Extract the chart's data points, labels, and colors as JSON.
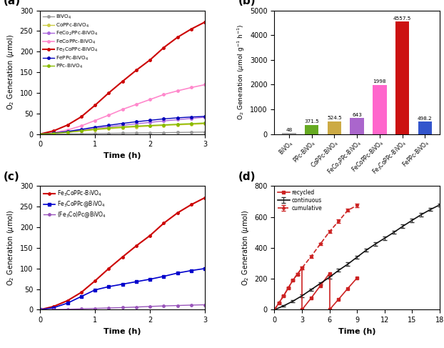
{
  "panel_a": {
    "title": "(a)",
    "xlabel": "Time (h)",
    "ylabel": "O$_2$ Generation ($\\mu$mol)",
    "xlim": [
      0,
      3
    ],
    "ylim": [
      0,
      300
    ],
    "yticks": [
      0,
      50,
      100,
      150,
      200,
      250,
      300
    ],
    "xticks": [
      0,
      1,
      2,
      3
    ],
    "series": [
      {
        "label": "BiVO$_4$",
        "color": "#999999",
        "lw": 1.0,
        "x": [
          0,
          0.25,
          0.5,
          0.75,
          1.0,
          1.25,
          1.5,
          1.75,
          2.0,
          2.25,
          2.5,
          2.75,
          3.0
        ],
        "y": [
          0,
          0.3,
          0.7,
          1.1,
          1.5,
          1.9,
          2.3,
          2.7,
          3.1,
          3.5,
          4.0,
          4.5,
          5.0
        ]
      },
      {
        "label": "CoPPc-BiVO$_4$",
        "color": "#cccc44",
        "lw": 1.0,
        "x": [
          0,
          0.25,
          0.5,
          0.75,
          1.0,
          1.25,
          1.5,
          1.75,
          2.0,
          2.25,
          2.5,
          2.75,
          3.0
        ],
        "y": [
          0,
          2.0,
          4.5,
          7.5,
          10.5,
          13.0,
          15.5,
          17.5,
          19.5,
          21.0,
          22.5,
          23.5,
          25.0
        ]
      },
      {
        "label": "FeCo$_2$PPc-BiVO$_4$",
        "color": "#aa66dd",
        "lw": 1.0,
        "x": [
          0,
          0.25,
          0.5,
          0.75,
          1.0,
          1.25,
          1.5,
          1.75,
          2.0,
          2.25,
          2.5,
          2.75,
          3.0
        ],
        "y": [
          0,
          2.5,
          6.0,
          10.0,
          14.5,
          18.0,
          21.5,
          25.0,
          28.5,
          32.0,
          35.0,
          38.0,
          41.0
        ]
      },
      {
        "label": "FeCoPPc-BiVO$_4$",
        "color": "#ff88cc",
        "lw": 1.2,
        "x": [
          0,
          0.25,
          0.5,
          0.75,
          1.0,
          1.25,
          1.5,
          1.75,
          2.0,
          2.25,
          2.5,
          2.75,
          3.0
        ],
        "y": [
          0,
          4.0,
          10.0,
          20.0,
          33.0,
          46.0,
          60.0,
          72.0,
          84.0,
          96.0,
          105.0,
          113.0,
          120.0
        ]
      },
      {
        "label": "Fe$_3$CoPPc-BiVO$_4$",
        "color": "#cc0000",
        "lw": 1.5,
        "x": [
          0,
          0.25,
          0.5,
          0.75,
          1.0,
          1.25,
          1.5,
          1.75,
          2.0,
          2.25,
          2.5,
          2.75,
          3.0
        ],
        "y": [
          0,
          8.0,
          22.0,
          42.0,
          70.0,
          100.0,
          128.0,
          155.0,
          180.0,
          210.0,
          235.0,
          255.0,
          272.0
        ]
      },
      {
        "label": "FePPc-BiVO$_4$",
        "color": "#0000bb",
        "lw": 1.0,
        "x": [
          0,
          0.25,
          0.5,
          0.75,
          1.0,
          1.25,
          1.5,
          1.75,
          2.0,
          2.25,
          2.5,
          2.75,
          3.0
        ],
        "y": [
          0,
          2.5,
          6.5,
          11.5,
          17.0,
          21.5,
          26.0,
          30.0,
          33.5,
          37.0,
          39.5,
          41.5,
          43.0
        ]
      },
      {
        "label": "PPc-BiVO$_4$",
        "color": "#88bb00",
        "lw": 1.0,
        "x": [
          0,
          0.25,
          0.5,
          0.75,
          1.0,
          1.25,
          1.5,
          1.75,
          2.0,
          2.25,
          2.5,
          2.75,
          3.0
        ],
        "y": [
          0,
          2.0,
          4.5,
          8.0,
          12.0,
          15.0,
          17.5,
          19.5,
          21.0,
          22.5,
          24.0,
          25.5,
          27.0
        ]
      }
    ]
  },
  "panel_b": {
    "title": "(b)",
    "ylabel": "O$_2$ Generation ($\\mu$mol g$^{-1}$ h$^{-1}$)",
    "ylim": [
      0,
      5000
    ],
    "yticks": [
      0,
      1000,
      2000,
      3000,
      4000,
      5000
    ],
    "categories": [
      "BiVO$_4$",
      "PPc-BiVO$_4$",
      "CoPPc-BiVO$_4$",
      "FeCo$_2$PPc-BiVO$_4$",
      "FeCoPPc-BiVO$_4$",
      "Fe$_3$CoPPc-BiVO$_4$",
      "FePPc-BiVO$_4$"
    ],
    "values": [
      48,
      371.5,
      524.5,
      643,
      1998,
      4557.5,
      498.2
    ],
    "colors": [
      "#aaaaaa",
      "#66aa22",
      "#ccaa44",
      "#aa66cc",
      "#ff66cc",
      "#cc1111",
      "#3355cc"
    ]
  },
  "panel_c": {
    "title": "(c)",
    "xlabel": "Time (h)",
    "ylabel": "O$_2$ Generation ($\\mu$mol)",
    "xlim": [
      0,
      3
    ],
    "ylim": [
      0,
      300
    ],
    "yticks": [
      0,
      50,
      100,
      150,
      200,
      250,
      300
    ],
    "xticks": [
      0,
      1,
      2,
      3
    ],
    "series": [
      {
        "label": "Fe$_3$CoPPc-BiVO$_4$",
        "color": "#cc0000",
        "marker": "o",
        "lw": 1.5,
        "x": [
          0,
          0.25,
          0.5,
          0.75,
          1.0,
          1.25,
          1.5,
          1.75,
          2.0,
          2.25,
          2.5,
          2.75,
          3.0
        ],
        "y": [
          0,
          8.0,
          22.0,
          42.0,
          70.0,
          100.0,
          128.0,
          155.0,
          180.0,
          210.0,
          235.0,
          255.0,
          272.0
        ]
      },
      {
        "label": "Fe$_3$CoPPc@BiVO$_4$",
        "color": "#0000cc",
        "marker": "s",
        "lw": 1.2,
        "x": [
          0,
          0.25,
          0.5,
          0.75,
          1.0,
          1.25,
          1.5,
          1.75,
          2.0,
          2.25,
          2.5,
          2.75,
          3.0
        ],
        "y": [
          0,
          5.0,
          16.0,
          32.0,
          48.0,
          56.0,
          62.0,
          68.0,
          74.0,
          81.0,
          89.0,
          95.0,
          100.0
        ]
      },
      {
        "label": "(Fe$_3$Co)Pc@BiVO$_4$",
        "color": "#9955bb",
        "marker": "o",
        "lw": 1.0,
        "x": [
          0,
          0.25,
          0.5,
          0.75,
          1.0,
          1.25,
          1.5,
          1.75,
          2.0,
          2.25,
          2.5,
          2.75,
          3.0
        ],
        "y": [
          0,
          0.5,
          1.2,
          2.2,
          3.2,
          4.2,
          5.2,
          6.5,
          8.0,
          9.2,
          10.2,
          11.2,
          12.0
        ]
      }
    ]
  },
  "panel_d": {
    "title": "(d)",
    "xlabel": "Time (h)",
    "ylabel": "O$_2$ Generation ($\\mu$mol)",
    "xlim": [
      0,
      18
    ],
    "ylim": [
      0,
      800
    ],
    "yticks": [
      0,
      200,
      400,
      600,
      800
    ],
    "xticks": [
      0,
      3,
      6,
      9,
      12,
      15,
      18
    ],
    "continuous": {
      "label": "continuous",
      "color": "#111111",
      "x": [
        0,
        1,
        2,
        3,
        4,
        5,
        6,
        7,
        8,
        9,
        10,
        11,
        12,
        13,
        14,
        15,
        16,
        17,
        18
      ],
      "y": [
        0,
        25,
        55,
        90,
        130,
        170,
        210,
        255,
        295,
        340,
        385,
        425,
        462,
        500,
        540,
        578,
        615,
        648,
        678
      ],
      "yerr": [
        0,
        5,
        5,
        8,
        8,
        8,
        10,
        10,
        10,
        10,
        10,
        10,
        10,
        10,
        10,
        10,
        10,
        10,
        10
      ]
    },
    "recycled_segments": [
      {
        "x": [
          0,
          0.5,
          1.0,
          1.5,
          2.0,
          2.5,
          3.0
        ],
        "y": [
          0,
          45,
          90,
          140,
          190,
          230,
          270
        ]
      },
      {
        "x": [
          3.0,
          4.0,
          5.0,
          6.0
        ],
        "y": [
          0,
          75,
          155,
          235
        ]
      },
      {
        "x": [
          6.0,
          7.0,
          8.0,
          9.0
        ],
        "y": [
          0,
          68,
          138,
          205
        ]
      }
    ],
    "cumulative": {
      "label": "cumulative",
      "color": "#cc2222",
      "x": [
        0,
        0.5,
        1.0,
        1.5,
        2.0,
        2.5,
        3.0,
        4.0,
        5.0,
        6.0,
        7.0,
        8.0,
        9.0
      ],
      "y": [
        0,
        45,
        90,
        140,
        190,
        230,
        270,
        345,
        425,
        505,
        573,
        643,
        675
      ],
      "yerr": [
        0,
        4,
        4,
        5,
        5,
        6,
        8,
        8,
        8,
        8,
        10,
        10,
        12
      ]
    }
  }
}
